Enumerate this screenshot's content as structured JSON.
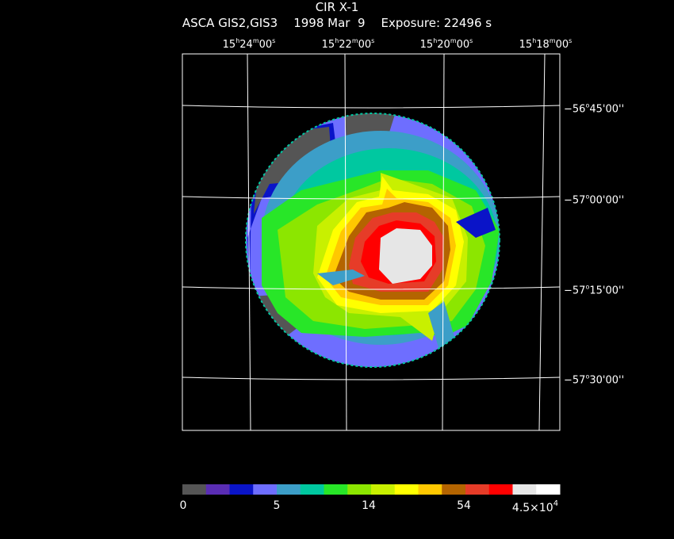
{
  "header": {
    "object": "CIR X-1",
    "instrument": "ASCA GIS2,GIS3",
    "date": "1998 Mar  9",
    "exposure": "Exposure: 22496 s"
  },
  "ra_ticks": [
    {
      "h": "15",
      "m": "24",
      "s": "00"
    },
    {
      "h": "15",
      "m": "22",
      "s": "00"
    },
    {
      "h": "15",
      "m": "20",
      "s": "00"
    },
    {
      "h": "15",
      "m": "18",
      "s": "00"
    }
  ],
  "dec_ticks": [
    {
      "d": "−56",
      "m": "45",
      "s": "00"
    },
    {
      "d": "−57",
      "m": "00",
      "s": "00"
    },
    {
      "d": "−57",
      "m": "15",
      "s": "00"
    },
    {
      "d": "−57",
      "m": "30",
      "s": "00"
    }
  ],
  "colorbar": {
    "colors": [
      "#555555",
      "#5a2db4",
      "#0a14c8",
      "#6e6eff",
      "#3c9ec8",
      "#00c8a0",
      "#28e628",
      "#8ce600",
      "#c8f000",
      "#ffff00",
      "#ffc800",
      "#b46400",
      "#e63c28",
      "#ff0000",
      "#e6e6e6",
      "#ffffff"
    ],
    "labels": [
      {
        "text": "0",
        "base": "",
        "exp": ""
      },
      {
        "text": "5",
        "base": "",
        "exp": ""
      },
      {
        "text": "14",
        "base": "",
        "exp": ""
      },
      {
        "text": "54",
        "base": "",
        "exp": ""
      },
      {
        "text": "",
        "base": "4.5×10",
        "exp": "4"
      }
    ]
  }
}
